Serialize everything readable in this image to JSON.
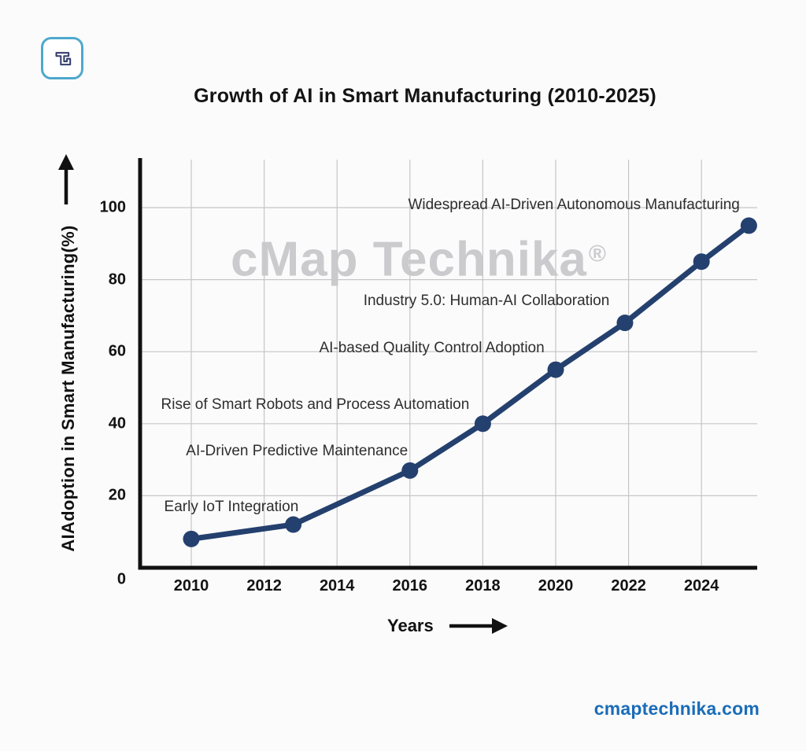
{
  "brand": {
    "logo_icon": "cmap-technika-logo"
  },
  "watermark": {
    "text": "cMap Technika",
    "registered_mark": "®"
  },
  "footer": {
    "website": "cmaptechnika.com"
  },
  "colors": {
    "line": "#24406e",
    "marker": "#24406e",
    "grid": "#c6c6c6",
    "axis": "#111111",
    "link": "#1a6cb8",
    "watermark": "#c9c9cc",
    "logo_border": "#4fa8cd",
    "logo_glyph": "#333d6d"
  },
  "chart_data": {
    "type": "line",
    "title": "Growth of AI in Smart Manufacturing (2010-2025)",
    "xlabel": "Years",
    "ylabel": "AIAdoption in Smart Manufacturing(%)",
    "x_ticks": [
      2010,
      2012,
      2014,
      2016,
      2018,
      2020,
      2022,
      2024
    ],
    "y_ticks": [
      0,
      20,
      40,
      60,
      80,
      100
    ],
    "xlim": [
      2008.6,
      2025.7
    ],
    "ylim": [
      0,
      113
    ],
    "grid": true,
    "legend": "none",
    "points": [
      [
        2010,
        8
      ],
      [
        2012.8,
        12
      ],
      [
        2016,
        27
      ],
      [
        2018,
        40
      ],
      [
        2020,
        55
      ],
      [
        2021.9,
        68
      ],
      [
        2024,
        85
      ],
      [
        2025.3,
        95
      ]
    ],
    "annotations": [
      {
        "label": "Early IoT Integration",
        "x": 2011.1,
        "y": 16.8
      },
      {
        "label": "AI-Driven Predictive Maintenance",
        "x": 2012.9,
        "y": 32.4
      },
      {
        "label": "Rise of Smart Robots and Process Automation",
        "x": 2013.4,
        "y": 45.2
      },
      {
        "label": "AI-based Quality Control Adoption",
        "x": 2016.6,
        "y": 61
      },
      {
        "label": "Industry 5.0: Human-AI Collaboration",
        "x": 2018.1,
        "y": 74
      },
      {
        "label": "Widespread AI-Driven Autonomous Manufacturing",
        "x": 2020.5,
        "y": 100.7
      }
    ]
  }
}
